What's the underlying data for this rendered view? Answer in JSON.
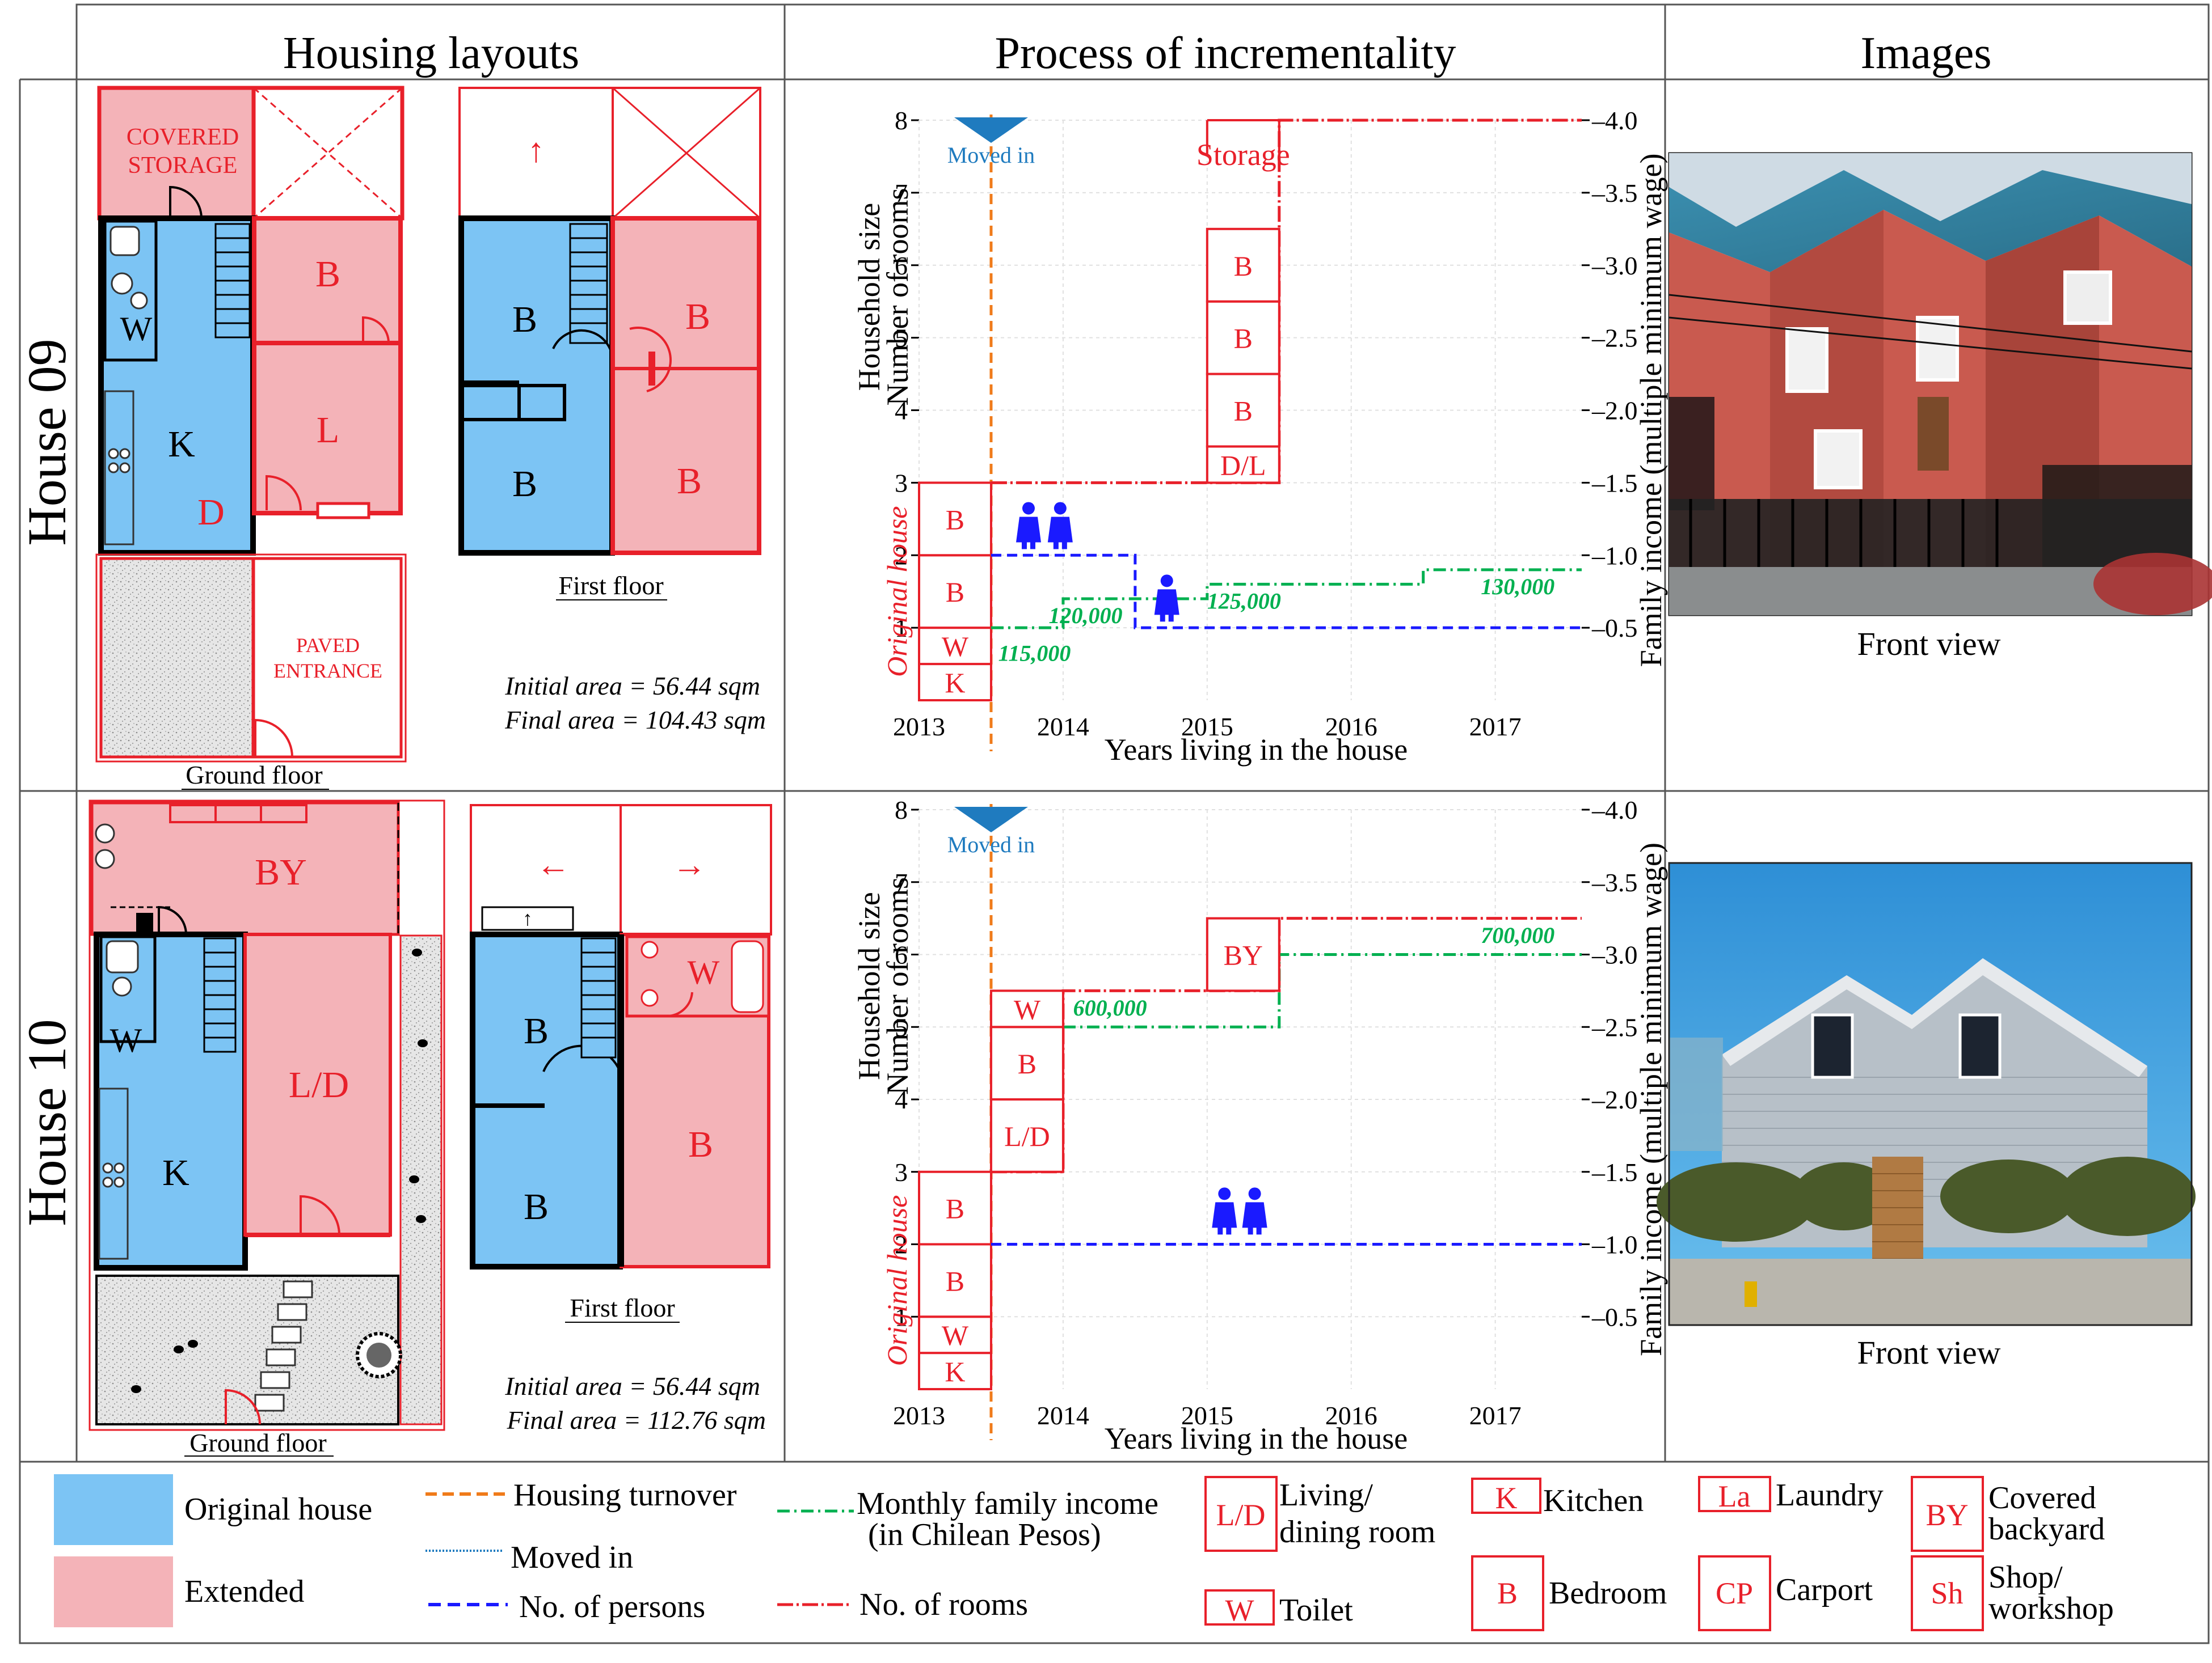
{
  "header": {
    "col1": "Housing layouts",
    "col2": "Process of incrementality",
    "col3": "Images"
  },
  "colors": {
    "blue_fill": "#7cc4f4",
    "red_fill": "#f4b3b8",
    "red_line": "#e8202a",
    "blue_line": "#1a1aff",
    "green_line": "#00b050",
    "orange_line": "#f07b1a",
    "moved_blue": "#1f7bbf",
    "gravel": "#d9d9d9"
  },
  "house09": {
    "row_label": "House 09",
    "layout": {
      "covered_storage_1": "COVERED",
      "covered_storage_2": "STORAGE",
      "paved_1": "PAVED",
      "paved_2": "ENTRANCE",
      "room_B": "B",
      "room_L": "L",
      "room_K": "K",
      "room_D": "D",
      "room_W": "W",
      "up_arrow": "↑",
      "first_floor": "First floor",
      "ground_floor": "Ground floor",
      "initial_area": "Initial area = 56.44 sqm",
      "final_area": "Final area = 104.43 sqm"
    },
    "chart": {
      "moved_in": "Moved in",
      "left_axis_1": "Household size",
      "left_axis_2": "Number of rooms",
      "right_axis": "Family income (multiple minimum wage)",
      "xlabel": "Years living in the house",
      "original_house": "Original house",
      "storage": "Storage",
      "rooms_original": [
        "K",
        "W",
        "B",
        "B"
      ],
      "rooms_2015": [
        "D/L",
        "B",
        "B",
        "B"
      ],
      "income_labels": [
        "115,000",
        "120,000",
        "125,000",
        "130,000"
      ]
    },
    "image_caption": "Front view"
  },
  "house10": {
    "row_label": "House 10",
    "layout": {
      "room_BY": "BY",
      "room_LD": "L/D",
      "room_K": "K",
      "room_W": "W",
      "room_B": "B",
      "left_arrow": "←",
      "right_arrow": "→",
      "up_arrow": "↑",
      "first_floor": "First floor",
      "ground_floor": "Ground floor",
      "initial_area": "Initial area = 56.44 sqm",
      "final_area": "Final area = 112.76 sqm"
    },
    "chart": {
      "moved_in": "Moved in",
      "left_axis_1": "Household size",
      "left_axis_2": "Number of rooms",
      "right_axis": "Family income (multiple minimum wage)",
      "xlabel": "Years living in the house",
      "original_house": "Original house",
      "rooms_original": [
        "K",
        "W",
        "B",
        "B"
      ],
      "rooms_2014": [
        "L/D",
        "B",
        "W"
      ],
      "room_2015": "BY",
      "income_labels": [
        "600,000",
        "700,000"
      ]
    },
    "image_caption": "Front view"
  },
  "chart_data": [
    {
      "type": "line",
      "title": "House 09 - Process of incrementality",
      "xlabel": "Years living in the house",
      "ylabel": "Household size / Number of rooms",
      "y2label": "Family income (multiple minimum wage)",
      "xlim": [
        2013,
        2017.6
      ],
      "ylim": [
        0,
        8
      ],
      "y2lim": [
        0,
        4.0
      ],
      "x_ticks": [
        "2013",
        "2014",
        "2015",
        "2016",
        "2017"
      ],
      "y_ticks": [
        "1",
        "2",
        "3",
        "4",
        "5",
        "6",
        "7",
        "8"
      ],
      "y2_ticks": [
        "0.5",
        "1.0",
        "1.5",
        "2.0",
        "2.5",
        "3.0",
        "3.5",
        "4.0"
      ],
      "series": [
        {
          "name": "No. of rooms",
          "x": [
            2013.5,
            2015.5,
            2015.5,
            2017.6
          ],
          "values": [
            3,
            3,
            8,
            8
          ]
        },
        {
          "name": "No. of persons",
          "x": [
            2013.5,
            2014.5,
            2014.5,
            2017.6
          ],
          "values": [
            2,
            2,
            1,
            1
          ]
        },
        {
          "name": "Monthly family income",
          "x": [
            2013.5,
            2014.0,
            2014.0,
            2015.0,
            2015.0,
            2016.5,
            2016.5,
            2017.6
          ],
          "values": [
            0.5,
            0.5,
            0.7,
            0.7,
            0.8,
            0.8,
            0.9,
            0.9
          ]
        }
      ],
      "housing_turnover_x": 2013.5
    },
    {
      "type": "line",
      "title": "House 10 - Process of incrementality",
      "xlabel": "Years living in the house",
      "ylabel": "Household size / Number of rooms",
      "y2label": "Family income (multiple minimum wage)",
      "xlim": [
        2013,
        2017.6
      ],
      "ylim": [
        0,
        8
      ],
      "y2lim": [
        0,
        4.0
      ],
      "x_ticks": [
        "2013",
        "2014",
        "2015",
        "2016",
        "2017"
      ],
      "y_ticks": [
        "1",
        "2",
        "3",
        "4",
        "5",
        "6",
        "7",
        "8"
      ],
      "y2_ticks": [
        "0.5",
        "1.0",
        "1.5",
        "2.0",
        "2.5",
        "3.0",
        "3.5",
        "4.0"
      ],
      "series": [
        {
          "name": "No. of rooms",
          "x": [
            2013.5,
            2014.0,
            2014.0,
            2015.5,
            2015.5,
            2017.6
          ],
          "values": [
            3,
            3,
            5.5,
            5.5,
            6.5,
            6.5
          ]
        },
        {
          "name": "No. of persons",
          "x": [
            2013.5,
            2017.6
          ],
          "values": [
            2,
            2
          ]
        },
        {
          "name": "Monthly family income",
          "x": [
            2014.0,
            2015.5,
            2015.5,
            2017.6
          ],
          "values": [
            2.5,
            2.5,
            3.0,
            3.0
          ]
        }
      ],
      "housing_turnover_x": 2013.5
    }
  ],
  "legend": {
    "original_house": "Original house",
    "extended": "Extended",
    "housing_turnover": "Housing turnover",
    "moved_in": "Moved in",
    "no_persons": "No. of persons",
    "income_1": "Monthly family income",
    "income_2": "(in Chilean Pesos)",
    "no_rooms": "No. of rooms",
    "ld_code": "L/D",
    "ld_1": "Living/",
    "ld_2": "dining room",
    "w_code": "W",
    "w_label": "Toilet",
    "k_code": "K",
    "k_label": "Kitchen",
    "b_code": "B",
    "b_label": "Bedroom",
    "la_code": "La",
    "la_label": "Laundry",
    "cp_code": "CP",
    "cp_label": "Carport",
    "by_code": "BY",
    "by_1": "Covered",
    "by_2": "backyard",
    "sh_code": "Sh",
    "sh_1": "Shop/",
    "sh_2": "workshop"
  }
}
